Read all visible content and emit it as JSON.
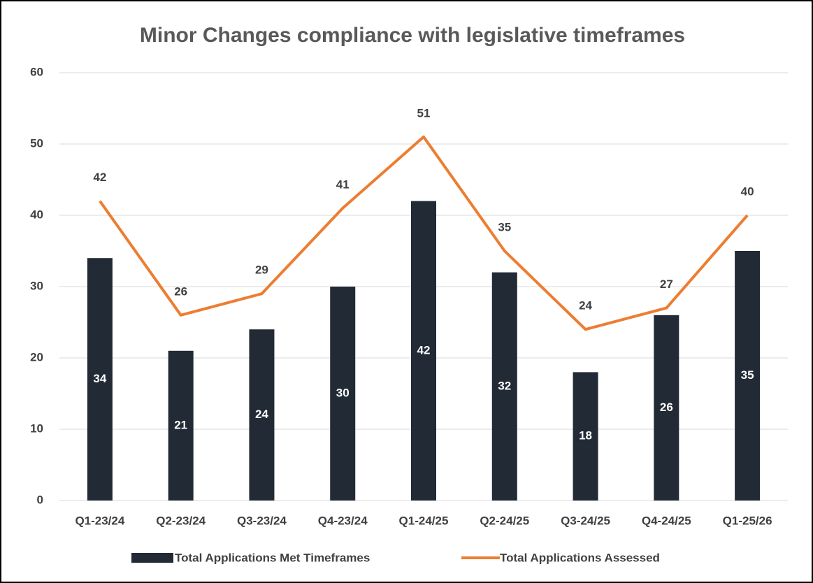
{
  "chart_data": {
    "type": "combo",
    "title": "Minor Changes compliance with legislative timeframes",
    "categories": [
      "Q1-23/24",
      "Q2-23/24",
      "Q3-23/24",
      "Q4-23/24",
      "Q1-24/25",
      "Q2-24/25",
      "Q3-24/25",
      "Q4-24/25",
      "Q1-25/26"
    ],
    "series": [
      {
        "name": "Total Applications Met Timeframes",
        "type": "bar",
        "color": "#222a35",
        "values": [
          34,
          21,
          24,
          30,
          42,
          32,
          18,
          26,
          35
        ]
      },
      {
        "name": "Total Applications Assessed",
        "type": "line",
        "color": "#ed7d31",
        "values": [
          42,
          26,
          29,
          41,
          51,
          35,
          24,
          27,
          40
        ]
      }
    ],
    "ylim": [
      0,
      60
    ],
    "yticks": [
      0,
      10,
      20,
      30,
      40,
      50,
      60
    ],
    "grid": true,
    "legend": "bottom"
  }
}
